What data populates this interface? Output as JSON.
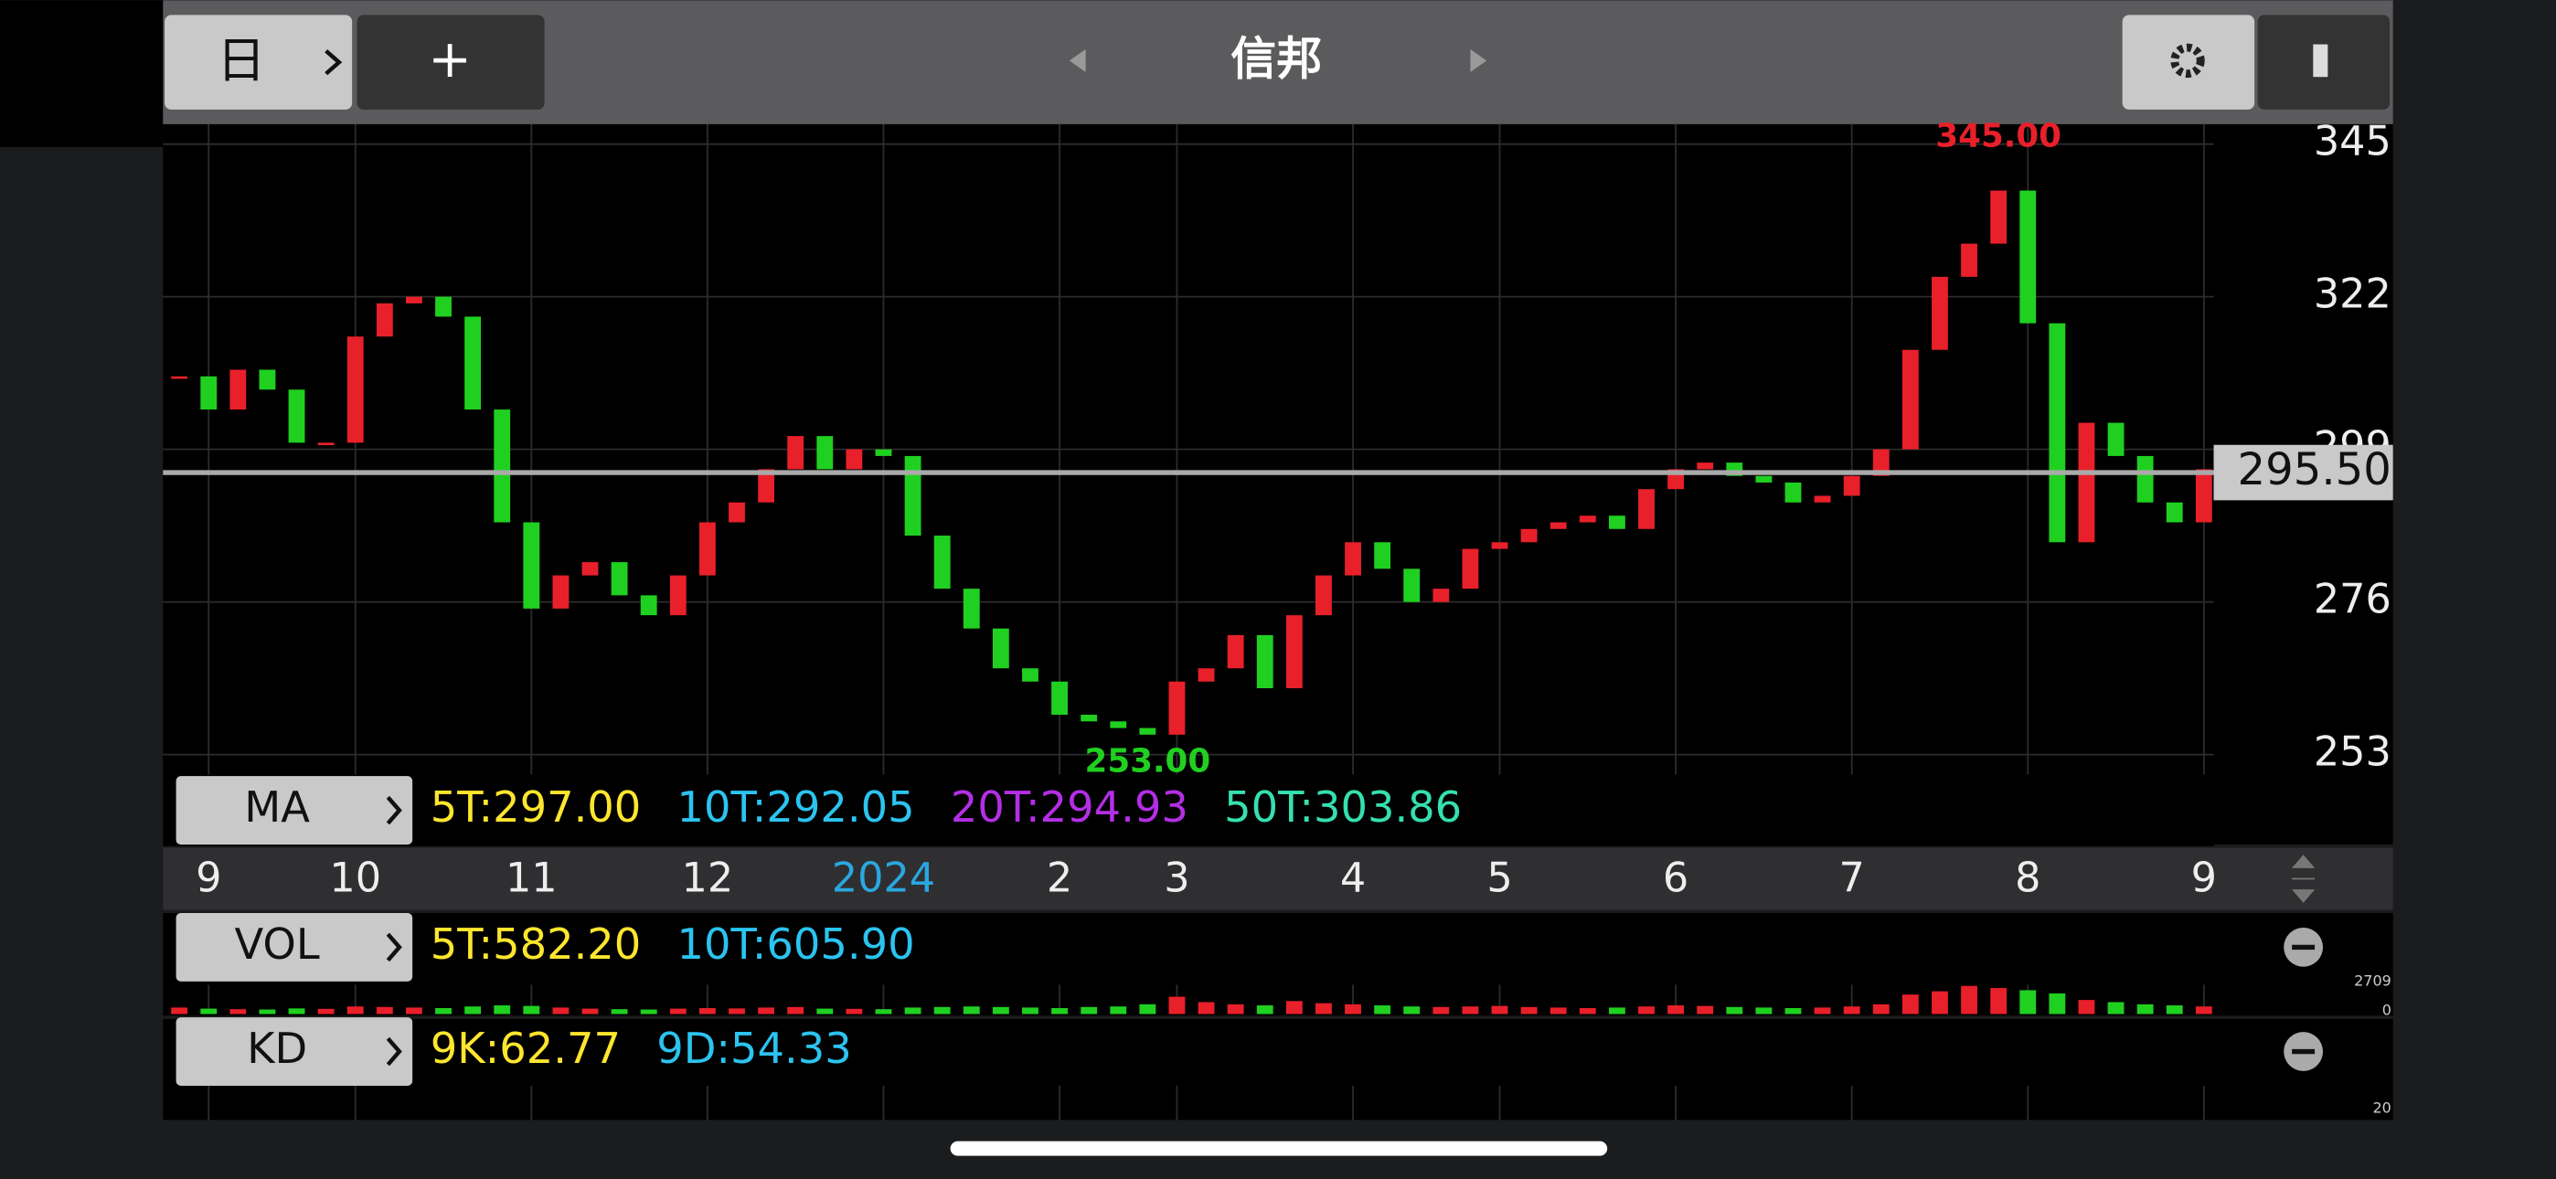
{
  "toolbar": {
    "period": "日",
    "add": "+",
    "title": "信邦"
  },
  "price_chart": {
    "type": "candlestick",
    "ylim": [
      250,
      348
    ],
    "yticks": [
      253,
      276,
      299,
      322,
      345
    ],
    "up_color": "#e8202a",
    "down_color": "#20d020",
    "grid": true,
    "categories": [
      null,
      "9",
      null,
      null,
      null,
      null,
      "10",
      null,
      null,
      null,
      null,
      null,
      "11",
      null,
      null,
      null,
      null,
      null,
      "12",
      null,
      null,
      null,
      null,
      null,
      "2024",
      null,
      null,
      null,
      null,
      null,
      "2",
      null,
      null,
      null,
      "3",
      null,
      null,
      null,
      null,
      null,
      "4",
      null,
      null,
      null,
      null,
      "5",
      null,
      null,
      null,
      null,
      null,
      "6",
      null,
      null,
      null,
      null,
      null,
      "7",
      null,
      null,
      null,
      null,
      null,
      "8",
      null,
      null,
      null,
      null,
      null,
      "9"
    ],
    "closes": [
      310,
      305,
      311,
      308,
      300,
      300,
      316,
      321,
      322,
      319,
      305,
      288,
      275,
      280,
      282,
      277,
      274,
      280,
      288,
      291,
      296,
      301,
      296,
      299,
      298,
      286,
      278,
      272,
      266,
      264,
      259,
      258,
      257,
      256,
      264,
      266,
      271,
      263,
      274,
      280,
      285,
      281,
      276,
      278,
      284,
      285,
      287,
      288,
      289,
      287,
      293,
      296,
      297,
      295,
      294,
      291,
      292,
      295,
      299,
      314,
      325,
      330,
      338,
      318,
      285,
      303,
      298,
      291,
      288,
      296
    ],
    "high": {
      "value": 345,
      "label": "345.00"
    },
    "low": {
      "value": 253,
      "label": "253.00"
    },
    "last": {
      "value": 295.5,
      "label": "295.50"
    }
  },
  "ma_legend": {
    "label": "MA",
    "items": [
      {
        "text": "5T:297.00",
        "color": "#ffe62e"
      },
      {
        "text": "10T:292.05",
        "color": "#2bc4f0"
      },
      {
        "text": "20T:294.93",
        "color": "#b42ee6"
      },
      {
        "text": "50T:303.86",
        "color": "#35e0b0"
      }
    ]
  },
  "vol_legend": {
    "label": "VOL",
    "items": [
      {
        "text": "5T:582.20",
        "color": "#ffe62e"
      },
      {
        "text": "10T:605.90",
        "color": "#2bc4f0"
      }
    ]
  },
  "volume": {
    "ylim": [
      0,
      2709
    ],
    "yticks": [
      0,
      2709
    ],
    "values": [
      600,
      500,
      450,
      420,
      520,
      480,
      700,
      650,
      600,
      550,
      700,
      800,
      750,
      600,
      500,
      450,
      420,
      500,
      550,
      520,
      600,
      650,
      500,
      480,
      450,
      600,
      650,
      700,
      650,
      600,
      550,
      650,
      700,
      900,
      1600,
      1100,
      900,
      800,
      1200,
      1000,
      900,
      800,
      700,
      650,
      700,
      750,
      650,
      600,
      550,
      600,
      700,
      800,
      750,
      650,
      600,
      550,
      600,
      700,
      900,
      1800,
      2100,
      2600,
      2400,
      2200,
      1900,
      1300,
      1100,
      900,
      800,
      700
    ]
  },
  "kd_legend": {
    "label": "KD",
    "items": [
      {
        "text": "9K:62.77",
        "color": "#ffe62e"
      },
      {
        "text": "9D:54.33",
        "color": "#2bc4f0"
      }
    ]
  },
  "kd": {
    "yticks": [
      20
    ]
  }
}
